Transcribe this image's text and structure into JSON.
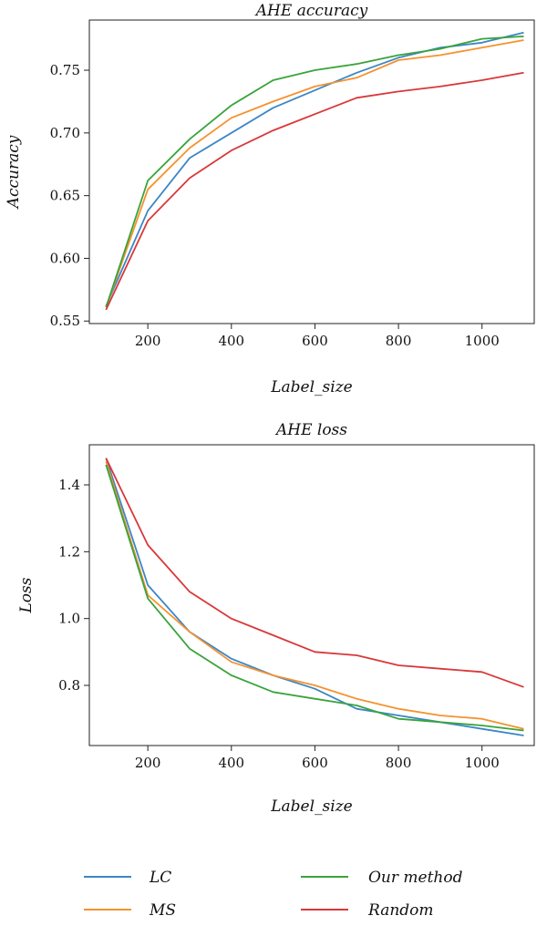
{
  "legend": {
    "entries": [
      {
        "name": "LC",
        "color": "#3b86c6"
      },
      {
        "name": "Our method",
        "color": "#3aa33a"
      },
      {
        "name": "MS",
        "color": "#f5922f"
      },
      {
        "name": "Random",
        "color": "#d9383a"
      }
    ],
    "placement": "bottom"
  },
  "chart_data": [
    {
      "type": "line",
      "title": "AHE accuracy",
      "xlabel": "Label_size",
      "ylabel": "Accuracy",
      "xlim": [
        60,
        1125
      ],
      "ylim": [
        0.548,
        0.79
      ],
      "xticks": [
        200,
        400,
        600,
        800,
        1000
      ],
      "xtick_labels": [
        "200",
        "400",
        "600",
        "800",
        "1000"
      ],
      "yticks": [
        0.55,
        0.6,
        0.65,
        0.7,
        0.75
      ],
      "ytick_labels": [
        "0.55",
        "0.60",
        "0.65",
        "0.70",
        "0.75"
      ],
      "grid": false,
      "x": [
        100,
        200,
        300,
        400,
        500,
        600,
        700,
        800,
        900,
        1000,
        1100
      ],
      "series": [
        {
          "name": "LC",
          "color": "#3b86c6",
          "values": [
            0.562,
            0.638,
            0.68,
            0.7,
            0.72,
            0.734,
            0.748,
            0.76,
            0.768,
            0.772,
            0.78
          ]
        },
        {
          "name": "MS",
          "color": "#f5922f",
          "values": [
            0.561,
            0.655,
            0.688,
            0.712,
            0.725,
            0.737,
            0.744,
            0.758,
            0.762,
            0.768,
            0.774
          ]
        },
        {
          "name": "Our method",
          "color": "#3aa33a",
          "values": [
            0.561,
            0.662,
            0.695,
            0.722,
            0.742,
            0.75,
            0.755,
            0.762,
            0.767,
            0.775,
            0.777
          ]
        },
        {
          "name": "Random",
          "color": "#d9383a",
          "values": [
            0.559,
            0.63,
            0.664,
            0.686,
            0.702,
            0.715,
            0.728,
            0.733,
            0.737,
            0.742,
            0.748
          ]
        }
      ]
    },
    {
      "type": "line",
      "title": "AHE loss",
      "xlabel": "Label_size",
      "ylabel": "Loss",
      "xlim": [
        60,
        1125
      ],
      "ylim": [
        0.62,
        1.52
      ],
      "xticks": [
        200,
        400,
        600,
        800,
        1000
      ],
      "xtick_labels": [
        "200",
        "400",
        "600",
        "800",
        "1000"
      ],
      "yticks": [
        0.8,
        1.0,
        1.2,
        1.4
      ],
      "ytick_labels": [
        "0.8",
        "1.0",
        "1.2",
        "1.4"
      ],
      "grid": false,
      "x": [
        100,
        200,
        300,
        400,
        500,
        600,
        700,
        800,
        900,
        1000,
        1100
      ],
      "series": [
        {
          "name": "LC",
          "color": "#3b86c6",
          "values": [
            1.48,
            1.1,
            0.96,
            0.88,
            0.83,
            0.79,
            0.73,
            0.71,
            0.69,
            0.67,
            0.65
          ]
        },
        {
          "name": "MS",
          "color": "#f5922f",
          "values": [
            1.47,
            1.07,
            0.96,
            0.87,
            0.83,
            0.8,
            0.76,
            0.73,
            0.71,
            0.7,
            0.67
          ]
        },
        {
          "name": "Our method",
          "color": "#3aa33a",
          "values": [
            1.46,
            1.06,
            0.91,
            0.83,
            0.78,
            0.76,
            0.74,
            0.7,
            0.69,
            0.68,
            0.665
          ]
        },
        {
          "name": "Random",
          "color": "#d9383a",
          "values": [
            1.48,
            1.22,
            1.08,
            1.0,
            0.95,
            0.9,
            0.89,
            0.86,
            0.85,
            0.84,
            0.795
          ]
        }
      ]
    }
  ]
}
